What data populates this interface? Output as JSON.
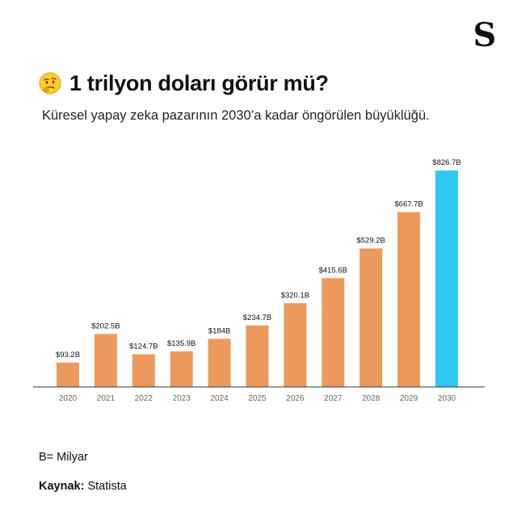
{
  "brand": {
    "logo_text": "S"
  },
  "header": {
    "emoji": "thinking-face-icon",
    "title": "1 trilyon doları görür mü?",
    "subtitle": "Küresel yapay zeka pazarının 2030’a kadar öngörülen büyüklüğü."
  },
  "footer": {
    "note": "B= Milyar",
    "source_label": "Kaynak:",
    "source_value": "Statista"
  },
  "chart_data": {
    "type": "bar",
    "categories": [
      "2020",
      "2021",
      "2022",
      "2023",
      "2024",
      "2025",
      "2026",
      "2027",
      "2028",
      "2029",
      "2030"
    ],
    "values": [
      93.2,
      202.5,
      124.7,
      135.9,
      184,
      234.7,
      320.1,
      415.6,
      529.2,
      667.7,
      826.7
    ],
    "value_labels": [
      "$93.2B",
      "$202.5B",
      "$124.7B",
      "$135.9B",
      "$184B",
      "$234.7B",
      "$320.1B",
      "$415.6B",
      "$529.2B",
      "$667.7B",
      "$826.7B"
    ],
    "title": "",
    "xlabel": "",
    "ylabel": "",
    "ylim": [
      0,
      830
    ],
    "grid": false,
    "colors": {
      "default": "#EB9A5B",
      "highlight": "#2EC8F2",
      "baseline": "#333333",
      "tick_label": "#666666"
    },
    "highlight_index": 10
  }
}
